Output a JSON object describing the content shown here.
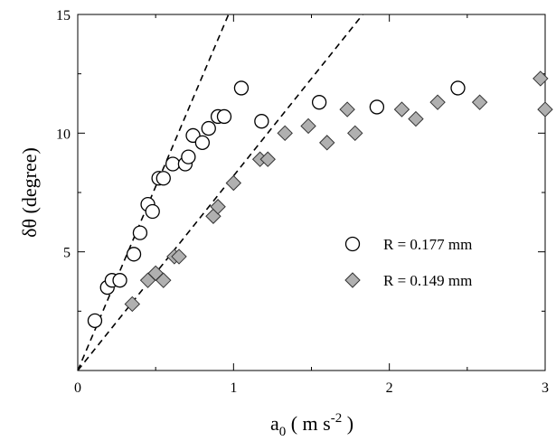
{
  "chart_data": {
    "type": "scatter",
    "xlim": [
      0,
      3
    ],
    "ylim": [
      0,
      15
    ],
    "x_ticks": [
      0,
      1,
      2,
      3
    ],
    "y_ticks": [
      5,
      10,
      15
    ],
    "x_tick_labels": [
      "0",
      "1",
      "2",
      "3"
    ],
    "y_tick_labels": [
      "5",
      "10",
      "15"
    ],
    "xlabel": "a0 ( m s-2 )",
    "ylabel": "δθ (degree)",
    "grid": false,
    "legend_position": "right",
    "series": [
      {
        "name": "R = 0.177 mm",
        "marker": "circle",
        "color": "#000000",
        "x": [
          0.11,
          0.19,
          0.22,
          0.27,
          0.36,
          0.4,
          0.45,
          0.48,
          0.52,
          0.55,
          0.61,
          0.69,
          0.71,
          0.74,
          0.8,
          0.84,
          0.9,
          0.94,
          1.05,
          1.18,
          1.55,
          1.92,
          2.44
        ],
        "y": [
          2.1,
          3.5,
          3.8,
          3.8,
          4.9,
          5.8,
          7.0,
          6.7,
          8.1,
          8.1,
          8.7,
          8.7,
          9.0,
          9.9,
          9.6,
          10.2,
          10.7,
          10.7,
          11.9,
          10.5,
          11.3,
          11.1,
          11.9
        ]
      },
      {
        "name": "R = 0.149 mm",
        "marker": "diamond",
        "color": "#b0b0b0",
        "x": [
          0.35,
          0.45,
          0.5,
          0.55,
          0.62,
          0.65,
          0.87,
          0.9,
          1.0,
          1.17,
          1.22,
          1.33,
          1.48,
          1.6,
          1.73,
          1.78,
          2.08,
          2.17,
          2.31,
          2.58,
          2.97,
          3.0
        ],
        "y": [
          2.8,
          3.8,
          4.1,
          3.8,
          4.8,
          4.8,
          6.5,
          6.9,
          7.9,
          8.9,
          8.9,
          10.0,
          10.3,
          9.6,
          11.0,
          10.0,
          11.0,
          10.6,
          11.3,
          11.3,
          12.3,
          11.0
        ]
      }
    ],
    "fit_lines": [
      {
        "slope": 15.5
      },
      {
        "slope": 8.2
      }
    ]
  }
}
